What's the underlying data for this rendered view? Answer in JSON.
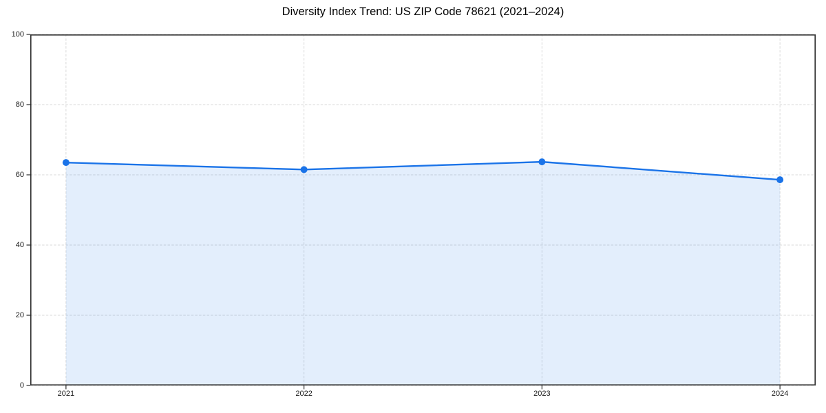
{
  "chart_data": {
    "type": "area",
    "title": "Diversity Index Trend: US ZIP Code 78621 (2021–2024)",
    "series": [
      {
        "name": "Diversity Index",
        "x": [
          2021,
          2022,
          2023,
          2024
        ],
        "values": [
          63.5,
          61.5,
          63.7,
          58.6
        ]
      }
    ],
    "xlabel": "",
    "ylabel": "",
    "xlim": [
      2020.85,
      2024.15
    ],
    "ylim": [
      0,
      100
    ],
    "xticks": [
      2021,
      2022,
      2023,
      2024
    ],
    "xtick_labels": [
      "2021",
      "2022",
      "2023",
      "2024"
    ],
    "yticks": [
      0,
      20,
      40,
      60,
      80,
      100
    ],
    "ytick_labels": [
      "0",
      "20",
      "40",
      "60",
      "80",
      "100"
    ],
    "grid": "dashed-both-axes",
    "legend": "none",
    "style": {
      "line_color": "#1a73e8",
      "marker_color": "#1a73e8",
      "fill_color": "rgba(26,115,232,0.12)",
      "grid_color": "#d9d9d9",
      "spine_color": "#2b2b2b",
      "text_color": "#1a1a1a",
      "background": "#ffffff"
    }
  }
}
